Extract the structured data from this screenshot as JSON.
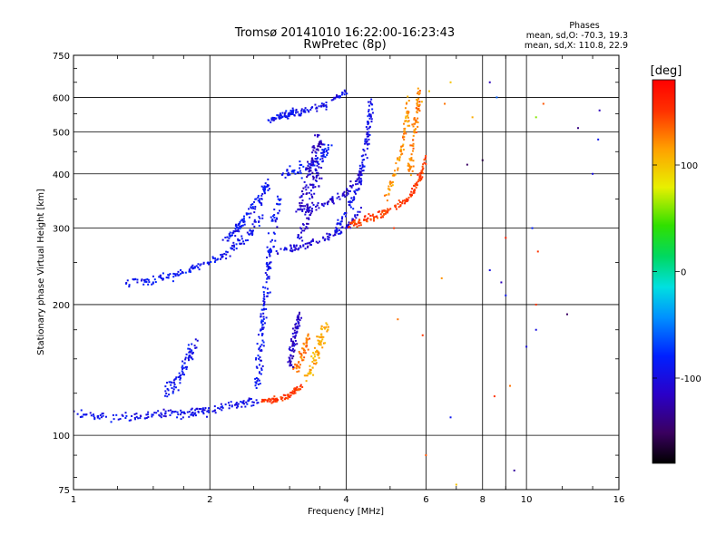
{
  "chart_data": {
    "type": "scatter",
    "title": "Tromsø 20141010 16:22:00-16:23:43",
    "subtitle": "RwPretec (8p)",
    "stats": {
      "heading": "Phases",
      "line_o": "mean, sd,O: -70.3, 19.3",
      "line_x": "mean, sd,X: 110.8, 22.9"
    },
    "xlabel": "Frequency [MHz]",
    "ylabel": "Stationary phase Virtual Height [km]",
    "x_scale": "log2",
    "y_scale": "log",
    "xlim": [
      1,
      16
    ],
    "ylim": [
      75,
      750
    ],
    "x_ticks": [
      1,
      2,
      4,
      6,
      8,
      10,
      16
    ],
    "x_tick_labels": [
      "1",
      "2",
      "4",
      "6",
      "8",
      "10",
      "16"
    ],
    "y_ticks": [
      75,
      100,
      200,
      300,
      400,
      500,
      600,
      750
    ],
    "y_tick_labels": [
      "75",
      "100",
      "200",
      "300",
      "400",
      "500",
      "600",
      "750"
    ],
    "grid": true,
    "colorbar": {
      "label": "[deg]",
      "min": -180,
      "max": 180,
      "ticks": [
        100,
        0,
        -100
      ],
      "tick_labels": [
        "100",
        "0",
        "-100"
      ]
    },
    "traces": [
      {
        "phase": -95,
        "spread": 0.03,
        "points": [
          [
            1.0,
            112
          ],
          [
            1.2,
            110
          ],
          [
            1.45,
            111
          ],
          [
            1.65,
            112
          ],
          [
            1.85,
            113
          ],
          [
            2.0,
            114
          ],
          [
            2.3,
            118
          ],
          [
            2.55,
            120
          ]
        ]
      },
      {
        "phase": -90,
        "spread": 0.03,
        "points": [
          [
            1.3,
            225
          ],
          [
            1.5,
            228
          ],
          [
            1.7,
            235
          ],
          [
            1.9,
            245
          ],
          [
            2.15,
            260
          ],
          [
            2.4,
            285
          ],
          [
            2.6,
            320
          ]
        ]
      },
      {
        "phase": -88,
        "spread": 0.035,
        "points": [
          [
            2.15,
            280
          ],
          [
            2.3,
            300
          ],
          [
            2.45,
            325
          ],
          [
            2.6,
            355
          ],
          [
            2.7,
            385
          ]
        ]
      },
      {
        "phase": -90,
        "spread": 0.04,
        "points": [
          [
            2.55,
            125
          ],
          [
            2.58,
            150
          ],
          [
            2.62,
            180
          ],
          [
            2.65,
            210
          ],
          [
            2.7,
            250
          ],
          [
            2.75,
            300
          ],
          [
            2.85,
            350
          ]
        ]
      },
      {
        "phase": -92,
        "spread": 0.05,
        "points": [
          [
            1.6,
            125
          ],
          [
            1.7,
            135
          ],
          [
            1.8,
            150
          ],
          [
            1.85,
            165
          ]
        ]
      },
      {
        "phase": -85,
        "spread": 0.05,
        "points": [
          [
            2.9,
            400
          ],
          [
            3.2,
            410
          ],
          [
            3.5,
            430
          ],
          [
            3.7,
            470
          ]
        ]
      },
      {
        "phase": -110,
        "spread": 0.05,
        "points": [
          [
            3.1,
            270
          ],
          [
            3.3,
            320
          ],
          [
            3.4,
            380
          ],
          [
            3.5,
            430
          ]
        ]
      },
      {
        "phase": -115,
        "spread": 0.05,
        "points": [
          [
            3.2,
            340
          ],
          [
            3.3,
            400
          ],
          [
            3.4,
            450
          ],
          [
            3.5,
            480
          ]
        ]
      },
      {
        "phase": -105,
        "spread": 0.025,
        "points": [
          [
            2.8,
            265
          ],
          [
            3.2,
            272
          ],
          [
            3.6,
            285
          ],
          [
            4.0,
            300
          ],
          [
            4.3,
            330
          ]
        ]
      },
      {
        "phase": -95,
        "spread": 0.03,
        "points": [
          [
            3.8,
            300
          ],
          [
            4.1,
            340
          ],
          [
            4.3,
            390
          ],
          [
            4.4,
            450
          ],
          [
            4.5,
            520
          ],
          [
            4.55,
            600
          ]
        ]
      },
      {
        "phase": -110,
        "spread": 0.03,
        "points": [
          [
            3.1,
            330
          ],
          [
            3.6,
            340
          ],
          [
            4.0,
            360
          ],
          [
            4.3,
            400
          ]
        ]
      },
      {
        "phase": -95,
        "spread": 0.02,
        "points": [
          [
            2.9,
            540
          ],
          [
            3.2,
            555
          ],
          [
            3.6,
            575
          ],
          [
            4.0,
            620
          ]
        ]
      },
      {
        "phase": -90,
        "spread": 0.02,
        "points": [
          [
            2.7,
            530
          ],
          [
            2.9,
            545
          ],
          [
            3.1,
            560
          ]
        ]
      },
      {
        "phase": 150,
        "spread": 0.025,
        "points": [
          [
            4.0,
            305
          ],
          [
            4.3,
            310
          ],
          [
            4.7,
            320
          ],
          [
            5.1,
            335
          ],
          [
            5.5,
            350
          ],
          [
            5.8,
            390
          ],
          [
            6.0,
            440
          ]
        ]
      },
      {
        "phase": 120,
        "spread": 0.03,
        "points": [
          [
            4.9,
            350
          ],
          [
            5.2,
            420
          ],
          [
            5.4,
            500
          ],
          [
            5.5,
            600
          ]
        ]
      },
      {
        "phase": 125,
        "spread": 0.03,
        "points": [
          [
            5.5,
            400
          ],
          [
            5.65,
            480
          ],
          [
            5.75,
            560
          ],
          [
            5.8,
            620
          ]
        ]
      },
      {
        "phase": 150,
        "spread": 0.02,
        "points": [
          [
            2.6,
            120
          ],
          [
            2.8,
            121
          ],
          [
            3.0,
            124
          ],
          [
            3.2,
            130
          ]
        ]
      },
      {
        "phase": 110,
        "spread": 0.045,
        "points": [
          [
            3.3,
            135
          ],
          [
            3.4,
            150
          ],
          [
            3.5,
            165
          ],
          [
            3.6,
            180
          ]
        ]
      },
      {
        "phase": 130,
        "spread": 0.045,
        "points": [
          [
            3.1,
            140
          ],
          [
            3.2,
            155
          ],
          [
            3.3,
            170
          ]
        ]
      },
      {
        "phase": -115,
        "spread": 0.035,
        "points": [
          [
            3.0,
            145
          ],
          [
            3.05,
            160
          ],
          [
            3.1,
            175
          ],
          [
            3.15,
            190
          ]
        ]
      }
    ],
    "scattered_points": [
      {
        "x": 6.1,
        "y": 620,
        "phase": 100
      },
      {
        "x": 6.6,
        "y": 580,
        "phase": 130
      },
      {
        "x": 7.6,
        "y": 540,
        "phase": 110
      },
      {
        "x": 8.3,
        "y": 650,
        "phase": -120
      },
      {
        "x": 8.6,
        "y": 600,
        "phase": -60
      },
      {
        "x": 10.5,
        "y": 540,
        "phase": 60
      },
      {
        "x": 10.9,
        "y": 580,
        "phase": 140
      },
      {
        "x": 13.0,
        "y": 510,
        "phase": -140
      },
      {
        "x": 14.5,
        "y": 560,
        "phase": -120
      },
      {
        "x": 14.4,
        "y": 480,
        "phase": -90
      },
      {
        "x": 7.4,
        "y": 420,
        "phase": -150
      },
      {
        "x": 10.3,
        "y": 300,
        "phase": -80
      },
      {
        "x": 10.6,
        "y": 265,
        "phase": 150
      },
      {
        "x": 9.0,
        "y": 285,
        "phase": 160
      },
      {
        "x": 8.3,
        "y": 240,
        "phase": -100
      },
      {
        "x": 8.8,
        "y": 225,
        "phase": -120
      },
      {
        "x": 9.0,
        "y": 210,
        "phase": -90
      },
      {
        "x": 10.5,
        "y": 200,
        "phase": 150
      },
      {
        "x": 12.3,
        "y": 190,
        "phase": -150
      },
      {
        "x": 10.5,
        "y": 175,
        "phase": -100
      },
      {
        "x": 9.2,
        "y": 130,
        "phase": 130
      },
      {
        "x": 8.5,
        "y": 123,
        "phase": 150
      },
      {
        "x": 6.8,
        "y": 110,
        "phase": -90
      },
      {
        "x": 6.0,
        "y": 90,
        "phase": 140
      },
      {
        "x": 7.0,
        "y": 77,
        "phase": 100
      },
      {
        "x": 9.4,
        "y": 83,
        "phase": -130
      },
      {
        "x": 10.0,
        "y": 160,
        "phase": -100
      },
      {
        "x": 6.8,
        "y": 650,
        "phase": 100
      },
      {
        "x": 6.5,
        "y": 230,
        "phase": 120
      },
      {
        "x": 5.9,
        "y": 170,
        "phase": 150
      },
      {
        "x": 8.0,
        "y": 430,
        "phase": -160
      },
      {
        "x": 14.0,
        "y": 400,
        "phase": -100
      },
      {
        "x": 5.2,
        "y": 185,
        "phase": 130
      },
      {
        "x": 5.1,
        "y": 300,
        "phase": 150
      }
    ]
  }
}
